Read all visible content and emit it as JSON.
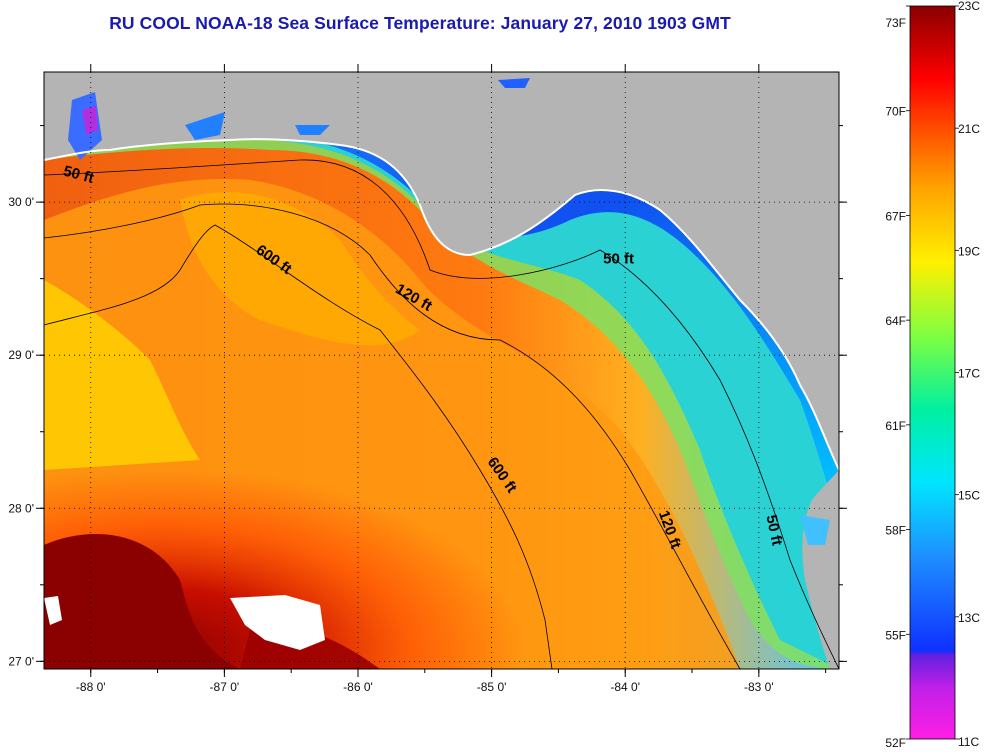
{
  "title": "RU COOL  NOAA-18  Sea Surface Temperature:  January 27, 2010 1903 GMT",
  "map": {
    "lon_range": [
      -88.35,
      -82.4
    ],
    "lat_range": [
      26.95,
      30.85
    ],
    "lon_ticks": [
      {
        "value": -88,
        "label": "-88 0'"
      },
      {
        "value": -87,
        "label": "-87 0'"
      },
      {
        "value": -86,
        "label": "-86 0'"
      },
      {
        "value": -85,
        "label": "-85 0'"
      },
      {
        "value": -84,
        "label": "-84 0'"
      },
      {
        "value": -83,
        "label": "-83 0'"
      }
    ],
    "lat_ticks": [
      {
        "value": 27,
        "label": "27 0'"
      },
      {
        "value": 28,
        "label": "28 0'"
      },
      {
        "value": 29,
        "label": "29 0'"
      },
      {
        "value": 30,
        "label": "30 0'"
      }
    ],
    "grid": "dotted",
    "land_color": "#b4b4b4",
    "contour_labels": [
      {
        "text": "50 ft",
        "lon": -88.1,
        "lat": 30.15,
        "rotate": 15
      },
      {
        "text": "600 ft",
        "lon": -86.65,
        "lat": 29.6,
        "rotate": 35
      },
      {
        "text": "120 ft",
        "lon": -85.6,
        "lat": 29.35,
        "rotate": 30
      },
      {
        "text": "50 ft",
        "lon": -84.05,
        "lat": 29.6,
        "rotate": 0
      },
      {
        "text": "600 ft",
        "lon": -84.95,
        "lat": 28.2,
        "rotate": 55
      },
      {
        "text": "120 ft",
        "lon": -83.7,
        "lat": 27.85,
        "rotate": 70
      },
      {
        "text": "50 ft",
        "lon": -82.92,
        "lat": 27.85,
        "rotate": 78
      }
    ]
  },
  "colorbar": {
    "range_c": [
      11,
      23
    ],
    "fahrenheit_labels": [
      "73F",
      "70F",
      "67F",
      "64F",
      "61F",
      "58F",
      "55F",
      "52F"
    ],
    "celsius_labels": [
      "23C",
      "21C",
      "19C",
      "17C",
      "15C",
      "13C",
      "11C"
    ],
    "colors": [
      "#ff1ee6",
      "#8a2be2",
      "#1030ff",
      "#1e90ff",
      "#00e5ff",
      "#7fff5a",
      "#fff000",
      "#ffa500",
      "#ff4000",
      "#ff0000",
      "#8b0000"
    ]
  }
}
